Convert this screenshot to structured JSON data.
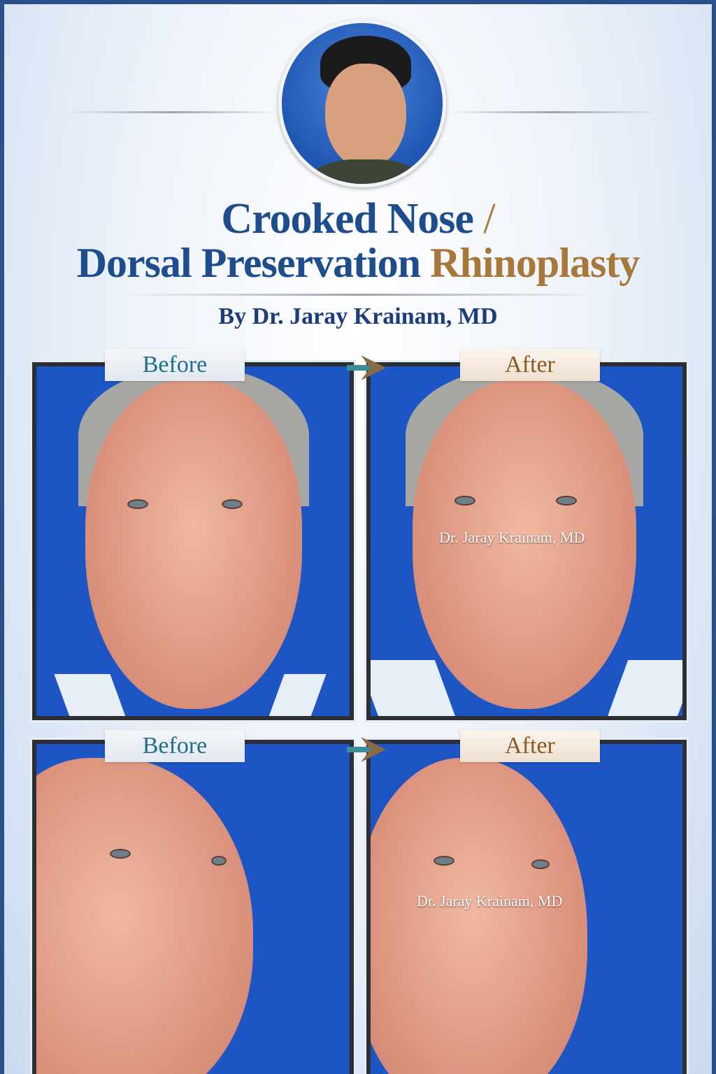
{
  "title": {
    "line1": "Crooked Nose",
    "slash": "/",
    "line2_blue": "Dorsal Preservation",
    "line2_gold": "Rhinoplasty"
  },
  "byline": "By Dr. Jaray Krainam, MD",
  "colors": {
    "title_blue": "#1e4d8e",
    "title_gold": "#a8773a",
    "background": "#1d55c4"
  },
  "rows": [
    {
      "view": "frontal",
      "before_label": "Before",
      "after_label": "After",
      "watermark": "Dr. Jaray Krainam, MD"
    },
    {
      "view": "oblique",
      "before_label": "Before",
      "after_label": "After",
      "watermark": "Dr. Jaray Krainam, MD"
    }
  ],
  "icons": {
    "arrow": "arrow-right-icon"
  }
}
